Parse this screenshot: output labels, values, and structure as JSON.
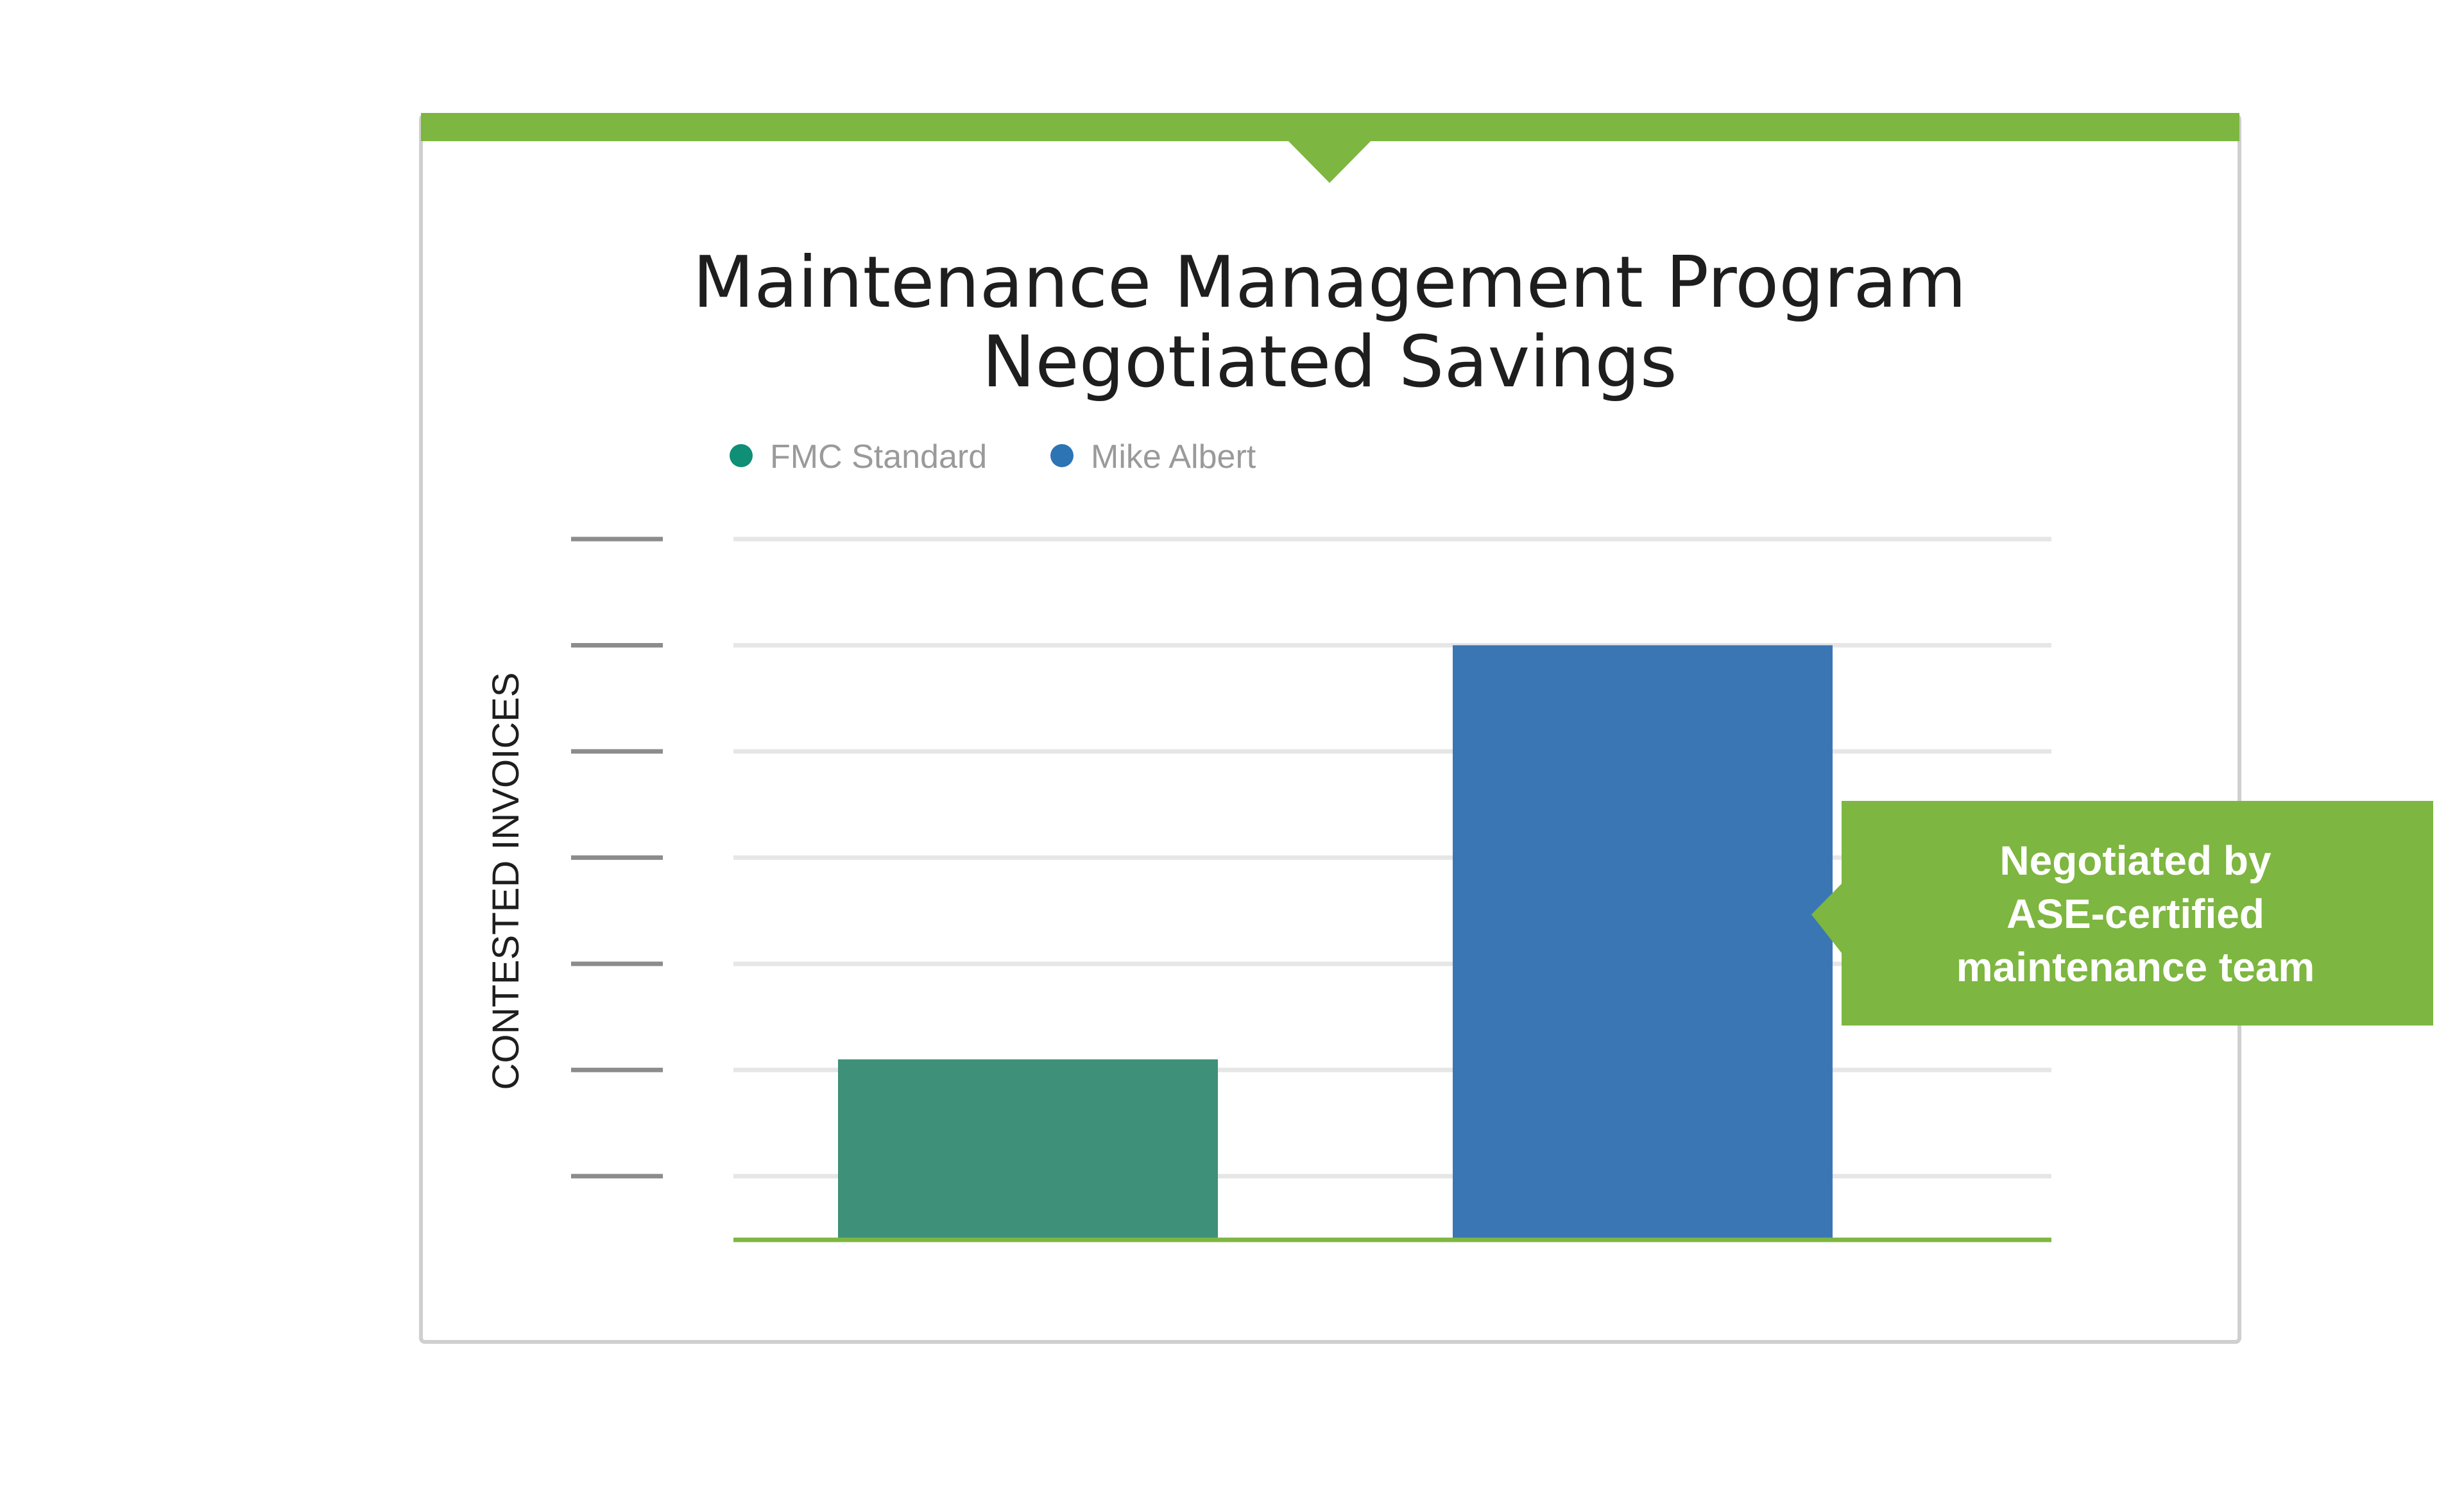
{
  "chart_data": {
    "type": "bar",
    "title_lines": [
      "Maintenance Management Program",
      "Negotiated Savings"
    ],
    "xlabel": "",
    "ylabel": "CONTESTED INVOICES",
    "categories": [
      "FMC Standard",
      "Mike Albert"
    ],
    "series": [
      {
        "name": "FMC Standard",
        "color": "#3e9079",
        "legend_color": "#0e8f76",
        "value": 1.7
      },
      {
        "name": "Mike Albert",
        "color": "#3b76b4",
        "legend_color": "#2d74b5",
        "value": 5.6
      }
    ],
    "ylim": [
      0,
      6.6
    ],
    "yticks": [
      0.6,
      1.6,
      2.6,
      3.6,
      4.6,
      5.6,
      6.6
    ],
    "y_tick_labels_shown": false,
    "grid": true,
    "legend_position": "top-left",
    "annotation": {
      "lines": [
        "Negotiated by",
        "ASE-certified",
        "maintenance team"
      ],
      "points_to": "Mike Albert",
      "color": "#7db640"
    }
  },
  "colors": {
    "accent": "#7db640",
    "grid": "#e6e6e6",
    "tick": "#8c8c8c",
    "frame": "#cfcfcf",
    "baseline": "#7db640"
  }
}
